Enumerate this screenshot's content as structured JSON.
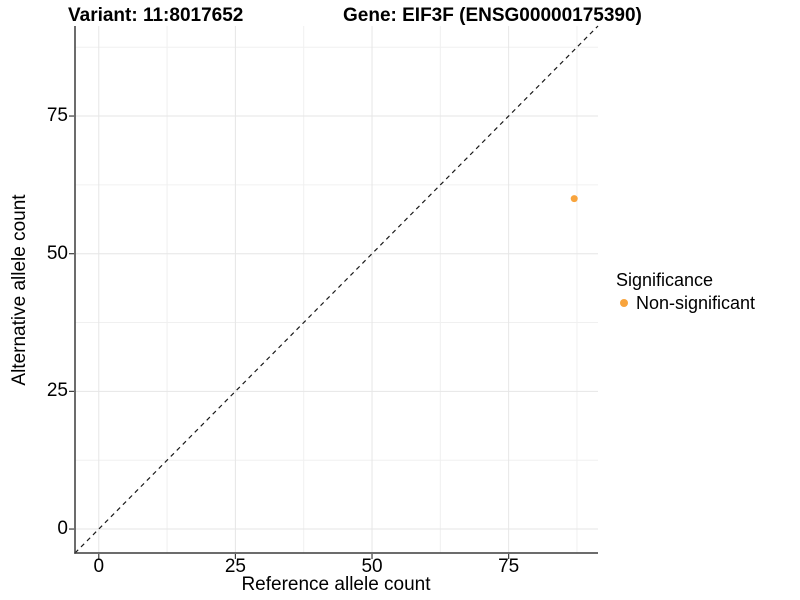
{
  "titles": {
    "variant": "Variant: 11:8017652",
    "gene": "Gene: EIF3F (ENSG00000175390)"
  },
  "chart_data": {
    "type": "scatter",
    "title": "Variant: 11:8017652  Gene: EIF3F (ENSG00000175390)",
    "xlabel": "Reference allele count",
    "ylabel": "Alternative allele count",
    "x_ticks": [
      0,
      25,
      50,
      75
    ],
    "y_ticks": [
      0,
      25,
      50,
      75
    ],
    "minor_ticks": [
      12.5,
      37.5,
      62.5,
      87.5
    ],
    "xlim": [
      -4.35,
      91.35
    ],
    "ylim": [
      -4.35,
      91.35
    ],
    "grid": true,
    "reference_line": {
      "type": "identity",
      "slope": 1,
      "intercept": 0,
      "style": "dashed",
      "color": "#1a1a1a"
    },
    "series": [
      {
        "name": "Non-significant",
        "color": "#F8A43D",
        "points": [
          {
            "x": 87,
            "y": 60
          }
        ]
      }
    ],
    "legend": {
      "position": "right",
      "title": "Significance",
      "entries": [
        {
          "label": "Non-significant",
          "color": "#F8A43D"
        }
      ]
    }
  },
  "colors": {
    "background": "#FFFFFF",
    "axis_line": "#3c3c3c",
    "tick_mark": "#3c3c3c",
    "grid_major": "#E6E6E6",
    "grid_minor": "#F0F0F0",
    "point": "#F8A43D",
    "text": "#000000"
  }
}
